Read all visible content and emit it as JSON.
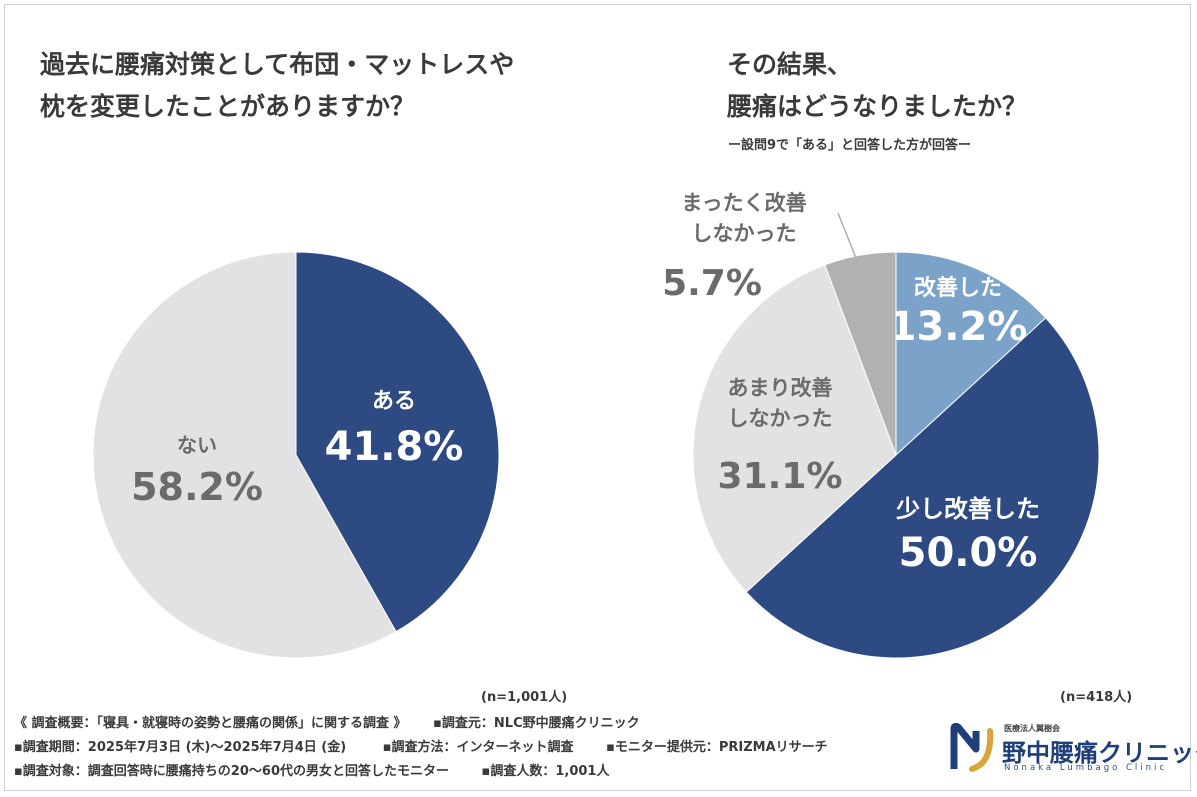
{
  "left": {
    "title_line1": "過去に腰痛対策として布団・マットレスや",
    "title_line2": "枕を変更したことがありますか？",
    "n": "(n=1,001人)"
  },
  "right": {
    "title_line1": "その結果、",
    "title_line2": "腰痛はどうなりましたか？",
    "note": "ー設問9で「ある」と回答した方が回答ー",
    "n": "(n=418人)"
  },
  "chart_data": [
    {
      "type": "pie",
      "title": "過去に腰痛対策として布団・マットレスや枕を変更したことがありますか？",
      "slices": [
        {
          "label": "ある",
          "value": 41.8,
          "value_text": "41.8%",
          "color": "#2e4a82",
          "text_color": "#ffffff"
        },
        {
          "label": "ない",
          "value": 58.2,
          "value_text": "58.2%",
          "color": "#e2e2e2",
          "text_color": "#6b6b6b"
        }
      ]
    },
    {
      "type": "pie",
      "title": "その結果、腰痛はどうなりましたか？",
      "slices": [
        {
          "label": "改善した",
          "value": 13.2,
          "value_text": "13.2%",
          "color": "#7ba3c9",
          "text_color": "#ffffff"
        },
        {
          "label": "少し改善した",
          "value": 50.0,
          "value_text": "50.0%",
          "color": "#2e4a82",
          "text_color": "#ffffff"
        },
        {
          "label": "あまり改善しなかった",
          "label_lines": [
            "あまり改善",
            "しなかった"
          ],
          "value": 31.1,
          "value_text": "31.1%",
          "color": "#e2e2e2",
          "text_color": "#6b6b6b"
        },
        {
          "label": "まったく改善しなかった",
          "label_lines": [
            "まったく改善",
            "しなかった"
          ],
          "value": 5.7,
          "value_text": "5.7%",
          "color": "#b1b1b1",
          "text_color": "#6b6b6b"
        }
      ]
    }
  ],
  "footer": {
    "summary": "《 調査概要：「寝具・就寝時の姿勢と腰痛の関係」に関する調査 》",
    "source": "▪調査元：NLC野中腰痛クリニック",
    "period": "▪調査期間：2025年7月3日 (木)〜2025年7月4日 (金)",
    "method": "▪調査方法：インターネット調査",
    "monitor": "▪モニター提供元：PRIZMAリサーチ",
    "target": "▪調査対象：調査回答時に腰痛持ちの20〜60代の男女と回答したモニター",
    "count": "▪調査人数：1,001人"
  },
  "logo": {
    "small": "医療法人翼樹会",
    "main": "野中腰痛クリニック",
    "sub": "Nonaka Lumbago Clinic",
    "colors": {
      "navy": "#1f3f7a",
      "gold": "#d9a53a"
    }
  }
}
